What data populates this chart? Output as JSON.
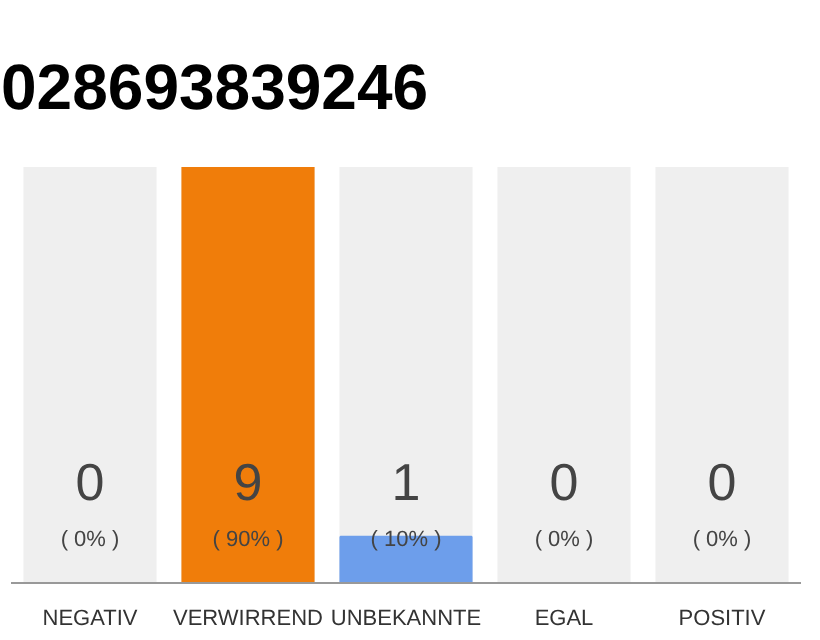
{
  "chart_data": {
    "type": "bar",
    "title": "028693839246",
    "categories": [
      "NEGATIV",
      "VERWIRREND",
      "UNBEKANNTE",
      "EGAL",
      "POSITIV"
    ],
    "values": [
      0,
      9,
      1,
      0,
      0
    ],
    "colors": [
      "#6d9eeb",
      "#f07d0a",
      "#6d9eeb",
      "#6d9eeb",
      "#6d9eeb"
    ],
    "value_labels": [
      "0",
      "9",
      "1",
      "0",
      "0"
    ],
    "annotations": [
      "( 0% )",
      "( 90% )",
      "( 10% )",
      "( 0% )",
      "( 0% )"
    ],
    "grid": false
  }
}
